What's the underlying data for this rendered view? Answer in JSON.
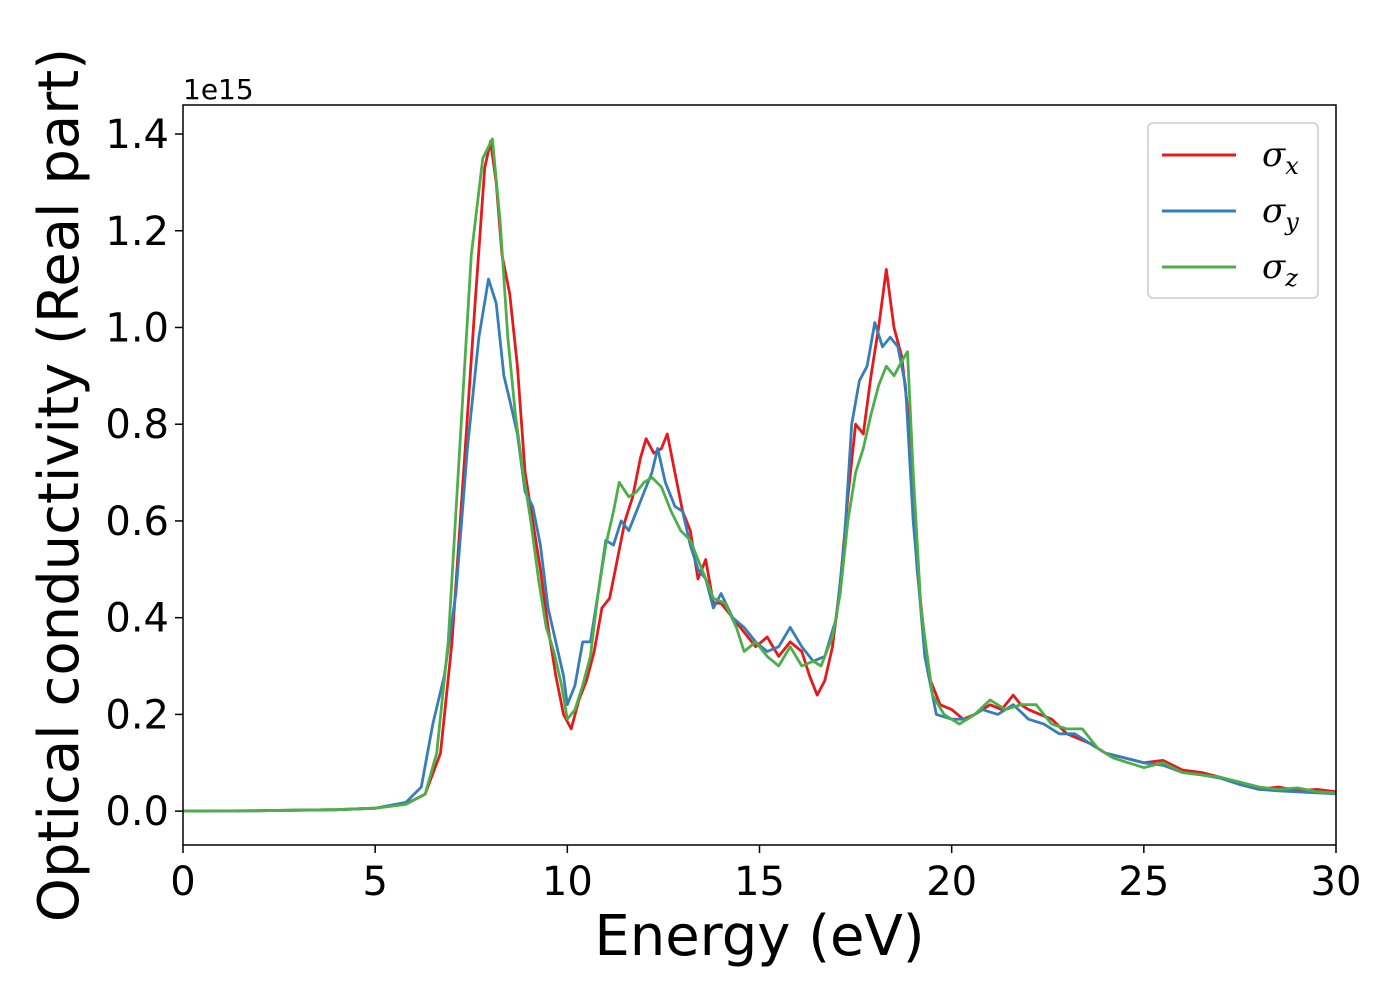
{
  "chart_data": {
    "type": "line",
    "title": "",
    "xlabel": "Energy (eV)",
    "ylabel": "Optical conductivity (Real part)",
    "y_offset_label": "1e15",
    "xlim": [
      0,
      30
    ],
    "ylim": [
      -0.07,
      1.46
    ],
    "xticks": [
      0,
      5,
      10,
      15,
      20,
      25,
      30
    ],
    "xtick_labels": [
      "0",
      "5",
      "10",
      "15",
      "20",
      "25",
      "30"
    ],
    "yticks": [
      0.0,
      0.2,
      0.4,
      0.6,
      0.8,
      1.0,
      1.2,
      1.4
    ],
    "ytick_labels": [
      "0.0",
      "0.2",
      "0.4",
      "0.6",
      "0.8",
      "1.0",
      "1.2",
      "1.4"
    ],
    "grid": false,
    "legend_position": "top-right",
    "series": [
      {
        "name": "σx",
        "legend_base": "σ",
        "legend_sub": "x",
        "color": "#e41a1c",
        "points": [
          [
            0,
            0
          ],
          [
            2,
            0.001
          ],
          [
            4,
            0.003
          ],
          [
            5,
            0.006
          ],
          [
            5.8,
            0.015
          ],
          [
            6.3,
            0.035
          ],
          [
            6.7,
            0.12
          ],
          [
            7.0,
            0.35
          ],
          [
            7.3,
            0.7
          ],
          [
            7.6,
            1.05
          ],
          [
            7.85,
            1.33
          ],
          [
            8.0,
            1.385
          ],
          [
            8.15,
            1.3
          ],
          [
            8.3,
            1.15
          ],
          [
            8.5,
            1.07
          ],
          [
            8.7,
            0.92
          ],
          [
            8.9,
            0.7
          ],
          [
            9.1,
            0.6
          ],
          [
            9.3,
            0.5
          ],
          [
            9.5,
            0.38
          ],
          [
            9.7,
            0.28
          ],
          [
            9.9,
            0.2
          ],
          [
            10.1,
            0.17
          ],
          [
            10.3,
            0.23
          ],
          [
            10.5,
            0.27
          ],
          [
            10.7,
            0.33
          ],
          [
            10.9,
            0.42
          ],
          [
            11.1,
            0.44
          ],
          [
            11.3,
            0.52
          ],
          [
            11.5,
            0.6
          ],
          [
            11.7,
            0.65
          ],
          [
            11.9,
            0.73
          ],
          [
            12.05,
            0.77
          ],
          [
            12.25,
            0.74
          ],
          [
            12.45,
            0.75
          ],
          [
            12.6,
            0.78
          ],
          [
            12.8,
            0.7
          ],
          [
            13.0,
            0.62
          ],
          [
            13.2,
            0.58
          ],
          [
            13.4,
            0.48
          ],
          [
            13.6,
            0.52
          ],
          [
            13.8,
            0.43
          ],
          [
            14.0,
            0.43
          ],
          [
            14.3,
            0.4
          ],
          [
            14.6,
            0.37
          ],
          [
            14.9,
            0.34
          ],
          [
            15.2,
            0.36
          ],
          [
            15.5,
            0.32
          ],
          [
            15.8,
            0.35
          ],
          [
            16.1,
            0.33
          ],
          [
            16.3,
            0.28
          ],
          [
            16.5,
            0.24
          ],
          [
            16.7,
            0.27
          ],
          [
            16.9,
            0.34
          ],
          [
            17.1,
            0.47
          ],
          [
            17.3,
            0.65
          ],
          [
            17.5,
            0.8
          ],
          [
            17.7,
            0.78
          ],
          [
            17.9,
            0.9
          ],
          [
            18.1,
            1.0
          ],
          [
            18.3,
            1.12
          ],
          [
            18.5,
            1.0
          ],
          [
            18.7,
            0.94
          ],
          [
            18.9,
            0.8
          ],
          [
            19.1,
            0.5
          ],
          [
            19.4,
            0.28
          ],
          [
            19.7,
            0.22
          ],
          [
            20.0,
            0.21
          ],
          [
            20.3,
            0.19
          ],
          [
            20.6,
            0.2
          ],
          [
            21.0,
            0.22
          ],
          [
            21.3,
            0.21
          ],
          [
            21.6,
            0.24
          ],
          [
            21.8,
            0.22
          ],
          [
            22.0,
            0.21
          ],
          [
            22.3,
            0.2
          ],
          [
            22.6,
            0.19
          ],
          [
            23.0,
            0.16
          ],
          [
            23.3,
            0.15
          ],
          [
            23.6,
            0.14
          ],
          [
            24.0,
            0.12
          ],
          [
            24.5,
            0.11
          ],
          [
            25.0,
            0.1
          ],
          [
            25.5,
            0.105
          ],
          [
            26.0,
            0.085
          ],
          [
            26.5,
            0.08
          ],
          [
            27.0,
            0.07
          ],
          [
            27.5,
            0.055
          ],
          [
            28.0,
            0.045
          ],
          [
            28.5,
            0.05
          ],
          [
            29.0,
            0.042
          ],
          [
            29.5,
            0.045
          ],
          [
            30,
            0.04
          ]
        ]
      },
      {
        "name": "σy",
        "legend_base": "σ",
        "legend_sub": "y",
        "color": "#377eb8",
        "points": [
          [
            0,
            0
          ],
          [
            2,
            0.001
          ],
          [
            4,
            0.003
          ],
          [
            5,
            0.006
          ],
          [
            5.8,
            0.018
          ],
          [
            6.2,
            0.05
          ],
          [
            6.5,
            0.18
          ],
          [
            6.8,
            0.28
          ],
          [
            7.1,
            0.45
          ],
          [
            7.4,
            0.75
          ],
          [
            7.7,
            0.98
          ],
          [
            7.95,
            1.1
          ],
          [
            8.15,
            1.05
          ],
          [
            8.35,
            0.9
          ],
          [
            8.5,
            0.85
          ],
          [
            8.7,
            0.78
          ],
          [
            8.9,
            0.66
          ],
          [
            9.1,
            0.63
          ],
          [
            9.3,
            0.55
          ],
          [
            9.5,
            0.42
          ],
          [
            9.7,
            0.35
          ],
          [
            9.9,
            0.28
          ],
          [
            10.0,
            0.22
          ],
          [
            10.2,
            0.26
          ],
          [
            10.4,
            0.35
          ],
          [
            10.6,
            0.35
          ],
          [
            10.8,
            0.45
          ],
          [
            11.0,
            0.56
          ],
          [
            11.2,
            0.55
          ],
          [
            11.4,
            0.6
          ],
          [
            11.6,
            0.58
          ],
          [
            11.8,
            0.62
          ],
          [
            12.0,
            0.66
          ],
          [
            12.2,
            0.7
          ],
          [
            12.35,
            0.75
          ],
          [
            12.55,
            0.68
          ],
          [
            12.8,
            0.63
          ],
          [
            13.0,
            0.62
          ],
          [
            13.2,
            0.55
          ],
          [
            13.4,
            0.5
          ],
          [
            13.6,
            0.48
          ],
          [
            13.8,
            0.42
          ],
          [
            14.0,
            0.45
          ],
          [
            14.3,
            0.4
          ],
          [
            14.6,
            0.38
          ],
          [
            14.9,
            0.35
          ],
          [
            15.2,
            0.33
          ],
          [
            15.5,
            0.34
          ],
          [
            15.8,
            0.38
          ],
          [
            16.1,
            0.34
          ],
          [
            16.4,
            0.31
          ],
          [
            16.7,
            0.32
          ],
          [
            17.0,
            0.4
          ],
          [
            17.2,
            0.55
          ],
          [
            17.4,
            0.8
          ],
          [
            17.6,
            0.89
          ],
          [
            17.8,
            0.92
          ],
          [
            18.0,
            1.01
          ],
          [
            18.2,
            0.96
          ],
          [
            18.4,
            0.98
          ],
          [
            18.6,
            0.96
          ],
          [
            18.8,
            0.88
          ],
          [
            19.0,
            0.6
          ],
          [
            19.3,
            0.32
          ],
          [
            19.6,
            0.2
          ],
          [
            20.0,
            0.19
          ],
          [
            20.4,
            0.19
          ],
          [
            20.8,
            0.21
          ],
          [
            21.2,
            0.2
          ],
          [
            21.6,
            0.22
          ],
          [
            22.0,
            0.19
          ],
          [
            22.4,
            0.18
          ],
          [
            22.8,
            0.16
          ],
          [
            23.2,
            0.16
          ],
          [
            23.6,
            0.14
          ],
          [
            24.0,
            0.12
          ],
          [
            24.5,
            0.11
          ],
          [
            25.0,
            0.1
          ],
          [
            25.5,
            0.095
          ],
          [
            26.0,
            0.08
          ],
          [
            26.5,
            0.075
          ],
          [
            27.0,
            0.068
          ],
          [
            27.5,
            0.055
          ],
          [
            28.0,
            0.045
          ],
          [
            28.5,
            0.042
          ],
          [
            29.0,
            0.04
          ],
          [
            29.5,
            0.038
          ],
          [
            30,
            0.036
          ]
        ]
      },
      {
        "name": "σz",
        "legend_base": "σ",
        "legend_sub": "z",
        "color": "#4daf4a",
        "points": [
          [
            0,
            0
          ],
          [
            2,
            0.001
          ],
          [
            4,
            0.003
          ],
          [
            5,
            0.006
          ],
          [
            5.8,
            0.014
          ],
          [
            6.3,
            0.035
          ],
          [
            6.6,
            0.12
          ],
          [
            6.9,
            0.35
          ],
          [
            7.2,
            0.75
          ],
          [
            7.5,
            1.15
          ],
          [
            7.8,
            1.35
          ],
          [
            8.05,
            1.39
          ],
          [
            8.25,
            1.22
          ],
          [
            8.45,
            0.98
          ],
          [
            8.65,
            0.82
          ],
          [
            8.85,
            0.7
          ],
          [
            9.05,
            0.6
          ],
          [
            9.25,
            0.48
          ],
          [
            9.45,
            0.38
          ],
          [
            9.65,
            0.33
          ],
          [
            9.85,
            0.26
          ],
          [
            10.0,
            0.19
          ],
          [
            10.2,
            0.21
          ],
          [
            10.4,
            0.26
          ],
          [
            10.6,
            0.32
          ],
          [
            10.8,
            0.45
          ],
          [
            11.0,
            0.55
          ],
          [
            11.2,
            0.62
          ],
          [
            11.35,
            0.68
          ],
          [
            11.6,
            0.65
          ],
          [
            11.8,
            0.66
          ],
          [
            12.0,
            0.68
          ],
          [
            12.2,
            0.69
          ],
          [
            12.45,
            0.67
          ],
          [
            12.7,
            0.62
          ],
          [
            12.95,
            0.58
          ],
          [
            13.2,
            0.56
          ],
          [
            13.5,
            0.5
          ],
          [
            13.8,
            0.44
          ],
          [
            14.1,
            0.43
          ],
          [
            14.4,
            0.38
          ],
          [
            14.6,
            0.33
          ],
          [
            14.9,
            0.35
          ],
          [
            15.2,
            0.32
          ],
          [
            15.5,
            0.3
          ],
          [
            15.8,
            0.34
          ],
          [
            16.1,
            0.3
          ],
          [
            16.4,
            0.31
          ],
          [
            16.6,
            0.3
          ],
          [
            16.9,
            0.36
          ],
          [
            17.1,
            0.45
          ],
          [
            17.3,
            0.6
          ],
          [
            17.5,
            0.7
          ],
          [
            17.7,
            0.75
          ],
          [
            17.9,
            0.82
          ],
          [
            18.1,
            0.88
          ],
          [
            18.3,
            0.92
          ],
          [
            18.5,
            0.9
          ],
          [
            18.7,
            0.93
          ],
          [
            18.85,
            0.95
          ],
          [
            19.0,
            0.7
          ],
          [
            19.2,
            0.42
          ],
          [
            19.5,
            0.24
          ],
          [
            19.8,
            0.2
          ],
          [
            20.2,
            0.18
          ],
          [
            20.6,
            0.2
          ],
          [
            21.0,
            0.23
          ],
          [
            21.4,
            0.21
          ],
          [
            21.8,
            0.22
          ],
          [
            22.2,
            0.22
          ],
          [
            22.6,
            0.18
          ],
          [
            23.0,
            0.17
          ],
          [
            23.4,
            0.17
          ],
          [
            23.8,
            0.13
          ],
          [
            24.2,
            0.11
          ],
          [
            24.6,
            0.1
          ],
          [
            25.0,
            0.09
          ],
          [
            25.5,
            0.1
          ],
          [
            26.0,
            0.08
          ],
          [
            26.5,
            0.075
          ],
          [
            27.0,
            0.07
          ],
          [
            27.5,
            0.06
          ],
          [
            28.0,
            0.05
          ],
          [
            28.5,
            0.045
          ],
          [
            29.0,
            0.048
          ],
          [
            29.5,
            0.04
          ],
          [
            30,
            0.038
          ]
        ]
      }
    ]
  }
}
